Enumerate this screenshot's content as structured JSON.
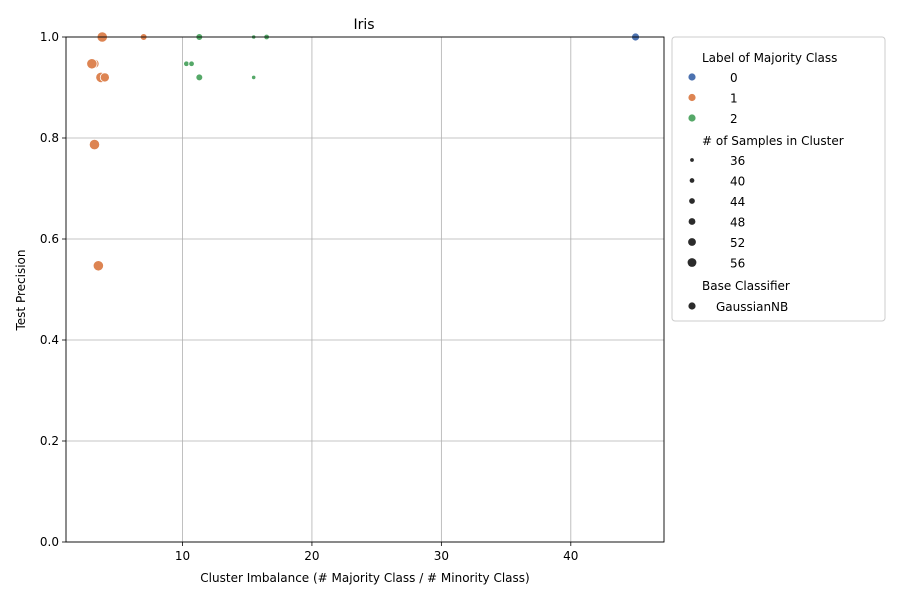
{
  "chart_data": {
    "type": "scatter",
    "title": "Iris",
    "xlabel": "Cluster Imbalance (# Majority Class / # Minority Class)",
    "ylabel": "Test Precision",
    "xlim": [
      1,
      47.2
    ],
    "ylim": [
      0,
      1.0
    ],
    "xticks": [
      10,
      20,
      30,
      40
    ],
    "xtick_labels": [
      "10",
      "20",
      "30",
      "40"
    ],
    "yticks": [
      0.0,
      0.2,
      0.4,
      0.6,
      0.8,
      1.0
    ],
    "ytick_labels": [
      "0.0",
      "0.2",
      "0.4",
      "0.6",
      "0.8",
      "1.0"
    ],
    "grid": true,
    "legend_position": "outside-right",
    "legend": {
      "hue_title": "Label of Majority Class",
      "hue_entries": [
        {
          "label": "0",
          "color": "#4c72b0"
        },
        {
          "label": "1",
          "color": "#dd8452"
        },
        {
          "label": "2",
          "color": "#55a868"
        }
      ],
      "size_title": "# of Samples in Cluster",
      "size_entries": [
        {
          "label": "36",
          "size": 36
        },
        {
          "label": "40",
          "size": 40
        },
        {
          "label": "44",
          "size": 44
        },
        {
          "label": "48",
          "size": 48
        },
        {
          "label": "52",
          "size": 52
        },
        {
          "label": "56",
          "size": 56
        }
      ],
      "style_title": "Base Classifier",
      "style_entries": [
        {
          "label": "GaussianNB"
        }
      ]
    },
    "series": [
      {
        "name": "0",
        "color": "#4c72b0",
        "points": [
          {
            "x": 45.0,
            "y": 1.0,
            "size": 48
          }
        ]
      },
      {
        "name": "1",
        "color": "#dd8452",
        "points": [
          {
            "x": 3.2,
            "y": 0.947,
            "size": 52
          },
          {
            "x": 3.0,
            "y": 0.947,
            "size": 56
          },
          {
            "x": 3.2,
            "y": 0.787,
            "size": 56
          },
          {
            "x": 3.5,
            "y": 0.547,
            "size": 56
          },
          {
            "x": 3.7,
            "y": 0.92,
            "size": 56
          },
          {
            "x": 4.0,
            "y": 0.92,
            "size": 52
          },
          {
            "x": 3.8,
            "y": 1.0,
            "size": 56
          },
          {
            "x": 7.0,
            "y": 1.0,
            "size": 44
          }
        ]
      },
      {
        "name": "2",
        "color": "#55a868",
        "points": [
          {
            "x": 10.3,
            "y": 0.947,
            "size": 40
          },
          {
            "x": 10.7,
            "y": 0.947,
            "size": 40
          },
          {
            "x": 11.3,
            "y": 0.92,
            "size": 44
          },
          {
            "x": 11.3,
            "y": 1.0,
            "size": 44
          },
          {
            "x": 15.5,
            "y": 0.92,
            "size": 36
          },
          {
            "x": 15.5,
            "y": 1.0,
            "size": 36
          },
          {
            "x": 16.5,
            "y": 1.0,
            "size": 40
          }
        ]
      }
    ]
  }
}
